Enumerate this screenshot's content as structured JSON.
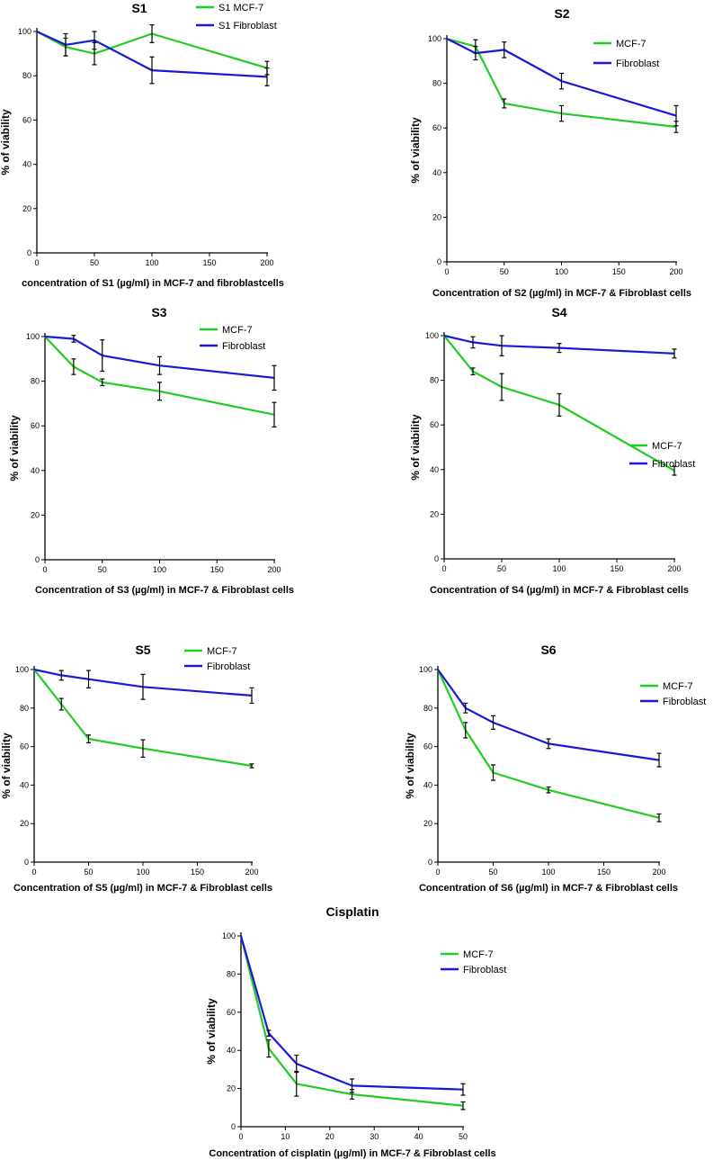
{
  "colors": {
    "mcf7": "#22cc22",
    "fibroblast": "#1a1ad6",
    "axis": "#000000",
    "errorbar": "#000000"
  },
  "chart_data": [
    {
      "id": "s1",
      "type": "line",
      "title": "S1",
      "xlabel": "concentration of S1  (µg/ml) in MCF-7  and fibroblastcells",
      "ylabel": "% of viability",
      "xlim": [
        0,
        200
      ],
      "ylim": [
        0,
        100
      ],
      "xticks": [
        0,
        50,
        100,
        150,
        200
      ],
      "yticks": [
        0,
        20,
        40,
        60,
        80,
        100
      ],
      "legend_position": "top-right",
      "series": [
        {
          "name": "S1 MCF-7",
          "color_key": "mcf7",
          "x": [
            0,
            25,
            50,
            100,
            200
          ],
          "y": [
            100,
            93,
            90,
            99,
            83.5
          ],
          "err": [
            0,
            4,
            5,
            4,
            3
          ]
        },
        {
          "name": "S1 Fibroblast",
          "color_key": "fibroblast",
          "x": [
            0,
            25,
            50,
            100,
            200
          ],
          "y": [
            100,
            94,
            96,
            82.5,
            79.5
          ],
          "err": [
            0,
            5,
            4,
            6,
            4
          ]
        }
      ]
    },
    {
      "id": "s2",
      "type": "line",
      "title": "S2",
      "xlabel": "Concentration of S2 (µg/ml) in MCF-7 & Fibroblast cells",
      "ylabel": "% of viability",
      "xlim": [
        0,
        200
      ],
      "ylim": [
        0,
        100
      ],
      "xticks": [
        0,
        50,
        100,
        150,
        200
      ],
      "yticks": [
        0,
        20,
        40,
        60,
        80,
        100
      ],
      "legend_position": "top-right",
      "series": [
        {
          "name": "MCF-7",
          "color_key": "mcf7",
          "x": [
            0,
            25,
            50,
            100,
            200
          ],
          "y": [
            100,
            96.5,
            71,
            66.5,
            60.5
          ],
          "err": [
            0,
            3,
            2,
            3.5,
            2.5
          ]
        },
        {
          "name": "Fibroblast",
          "color_key": "fibroblast",
          "x": [
            0,
            25,
            50,
            100,
            200
          ],
          "y": [
            100,
            93.5,
            95,
            81,
            65.5
          ],
          "err": [
            0,
            3,
            3.5,
            3.5,
            4.5
          ]
        }
      ]
    },
    {
      "id": "s3",
      "type": "line",
      "title": "S3",
      "xlabel": "Concentration of S3 (µg/ml) in MCF-7 & Fibroblast cells",
      "ylabel": "% of viability",
      "xlim": [
        0,
        200
      ],
      "ylim": [
        0,
        100
      ],
      "xticks": [
        0,
        50,
        100,
        150,
        200
      ],
      "yticks": [
        0,
        20,
        40,
        60,
        80,
        100
      ],
      "legend_position": "top-right",
      "series": [
        {
          "name": "MCF-7",
          "color_key": "mcf7",
          "x": [
            0,
            25,
            50,
            100,
            200
          ],
          "y": [
            100,
            86.5,
            79.5,
            75.5,
            65
          ],
          "err": [
            0,
            3.5,
            1.5,
            4,
            5.5
          ]
        },
        {
          "name": "Fibroblast",
          "color_key": "fibroblast",
          "x": [
            0,
            25,
            50,
            100,
            200
          ],
          "y": [
            100,
            99,
            91.5,
            87,
            81.5
          ],
          "err": [
            0,
            1.5,
            7,
            4,
            5.5
          ]
        }
      ]
    },
    {
      "id": "s4",
      "type": "line",
      "title": "S4",
      "xlabel": "Concentration of S4 (µg/ml) in MCF-7 & Fibroblast cells",
      "ylabel": "% of viability",
      "xlim": [
        0,
        200
      ],
      "ylim": [
        0,
        100
      ],
      "xticks": [
        0,
        50,
        100,
        150,
        200
      ],
      "yticks": [
        0,
        20,
        40,
        60,
        80,
        100
      ],
      "legend_position": "center-right",
      "series": [
        {
          "name": "MCF-7",
          "color_key": "mcf7",
          "x": [
            0,
            25,
            50,
            100,
            200
          ],
          "y": [
            100,
            84,
            77,
            69,
            39.5
          ],
          "err": [
            0,
            1.5,
            6,
            5,
            2
          ]
        },
        {
          "name": "Fibroblast",
          "color_key": "fibroblast",
          "x": [
            0,
            25,
            50,
            100,
            200
          ],
          "y": [
            100,
            97,
            95.5,
            94.5,
            92
          ],
          "err": [
            0,
            2.5,
            4.5,
            2,
            2
          ]
        }
      ]
    },
    {
      "id": "s5",
      "type": "line",
      "title": "S5",
      "xlabel": "Concentration of S5 (µg/ml) in MCF-7 & Fibroblast cells",
      "ylabel": "% of viability",
      "xlim": [
        0,
        200
      ],
      "ylim": [
        0,
        100
      ],
      "xticks": [
        0,
        50,
        100,
        150,
        200
      ],
      "yticks": [
        0,
        20,
        40,
        60,
        80,
        100
      ],
      "legend_position": "top-right",
      "series": [
        {
          "name": "MCF-7",
          "color_key": "mcf7",
          "x": [
            0,
            25,
            50,
            100,
            200
          ],
          "y": [
            100,
            82,
            64,
            59,
            50
          ],
          "err": [
            0,
            3,
            2,
            4.5,
            1
          ]
        },
        {
          "name": "Fibroblast",
          "color_key": "fibroblast",
          "x": [
            0,
            25,
            50,
            100,
            200
          ],
          "y": [
            100,
            97,
            95,
            91,
            86.5
          ],
          "err": [
            0,
            2.5,
            4.5,
            6.5,
            4
          ]
        }
      ]
    },
    {
      "id": "s6",
      "type": "line",
      "title": "S6",
      "xlabel": "Concentration of S6 (µg/ml) in MCF-7 & Fibroblast cells",
      "ylabel": "% of viability",
      "xlim": [
        0,
        200
      ],
      "ylim": [
        0,
        100
      ],
      "xticks": [
        0,
        50,
        100,
        150,
        200
      ],
      "yticks": [
        0,
        20,
        40,
        60,
        80,
        100
      ],
      "legend_position": "top-right",
      "series": [
        {
          "name": "MCF-7",
          "color_key": "mcf7",
          "x": [
            0,
            25,
            50,
            100,
            200
          ],
          "y": [
            100,
            68.5,
            46.5,
            37.5,
            23
          ],
          "err": [
            0,
            4,
            4,
            1.5,
            2
          ]
        },
        {
          "name": "Fibroblast",
          "color_key": "fibroblast",
          "x": [
            0,
            25,
            50,
            100,
            200
          ],
          "y": [
            100,
            80,
            72.5,
            61.5,
            53
          ],
          "err": [
            0,
            2.5,
            3.5,
            2.5,
            3.5
          ]
        }
      ]
    },
    {
      "id": "cisplatin",
      "type": "line",
      "title": "Cisplatin",
      "xlabel": "Concentration of cisplatin (µg/ml) in MCF-7 & Fibroblast cells",
      "ylabel": "% of viability",
      "xlim": [
        0,
        50
      ],
      "ylim": [
        0,
        100
      ],
      "xticks": [
        0,
        10,
        20,
        30,
        40,
        50
      ],
      "yticks": [
        0,
        20,
        40,
        60,
        80,
        100
      ],
      "legend_position": "top-right",
      "series": [
        {
          "name": "MCF-7",
          "color_key": "mcf7",
          "x": [
            0,
            6.25,
            12.5,
            25,
            50
          ],
          "y": [
            100,
            41,
            22.5,
            17,
            11
          ],
          "err": [
            0,
            4.5,
            6.5,
            2.5,
            2
          ]
        },
        {
          "name": "Fibroblast",
          "color_key": "fibroblast",
          "x": [
            0,
            6.25,
            12.5,
            25,
            50
          ],
          "y": [
            100,
            49,
            33,
            21.5,
            19.5
          ],
          "err": [
            0,
            1.5,
            4.5,
            3.5,
            3
          ]
        }
      ]
    }
  ]
}
